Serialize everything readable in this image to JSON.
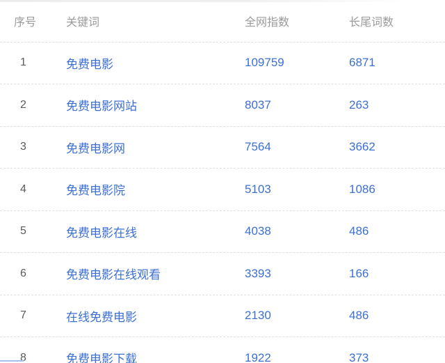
{
  "colors": {
    "link_blue": "#3c6fd4",
    "header_gray": "#9b9b9b",
    "row_number_gray": "#5a5a5a",
    "divider_gray": "#e0e0e0",
    "accent_light_blue": "#a5c3ea",
    "background": "#ffffff"
  },
  "table": {
    "headers": [
      {
        "id": "index",
        "label": "序号"
      },
      {
        "id": "keyword",
        "label": "关键词"
      },
      {
        "id": "net_index",
        "label": "全网指数"
      },
      {
        "id": "longtail_count",
        "label": "长尾词数"
      }
    ],
    "rows": [
      {
        "no": "1",
        "keyword": "免费电影",
        "net_index": "109759",
        "longtail_count": "6871"
      },
      {
        "no": "2",
        "keyword": "免费电影网站",
        "net_index": "8037",
        "longtail_count": "263"
      },
      {
        "no": "3",
        "keyword": "免费电影网",
        "net_index": "7564",
        "longtail_count": "3662"
      },
      {
        "no": "4",
        "keyword": "免费电影院",
        "net_index": "5103",
        "longtail_count": "1086"
      },
      {
        "no": "5",
        "keyword": "免费电影在线",
        "net_index": "4038",
        "longtail_count": "486"
      },
      {
        "no": "6",
        "keyword": "免费电影在线观看",
        "net_index": "3393",
        "longtail_count": "166"
      },
      {
        "no": "7",
        "keyword": "在线免费电影",
        "net_index": "2130",
        "longtail_count": "486"
      },
      {
        "no": "8",
        "keyword": "免费电影下载",
        "net_index": "1922",
        "longtail_count": "373"
      }
    ]
  }
}
